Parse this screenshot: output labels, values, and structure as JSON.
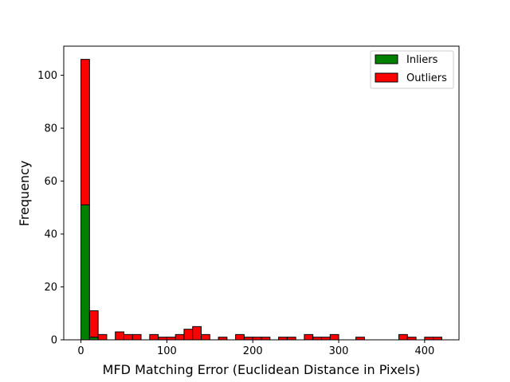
{
  "chart_data": {
    "type": "bar",
    "subtype": "stacked-histogram",
    "title": "",
    "xlabel": "MFD Matching Error (Euclidean Distance in Pixels)",
    "ylabel": "Frequency",
    "xlim": [
      -20,
      440
    ],
    "ylim": [
      0,
      111
    ],
    "xticks": [
      0,
      100,
      200,
      300,
      400
    ],
    "yticks": [
      0,
      20,
      40,
      60,
      80,
      100
    ],
    "bin_start": 0,
    "bin_width": 10,
    "legend_position": "top-right",
    "grid": false,
    "series": [
      {
        "name": "Inliers",
        "color": "#008000",
        "values": [
          51,
          1,
          0,
          0,
          0,
          0,
          0,
          0,
          0,
          0,
          0,
          0,
          0,
          0,
          0,
          0,
          0,
          0,
          0,
          0,
          0,
          0,
          0,
          0,
          0,
          0,
          0,
          0,
          0,
          0,
          0,
          0,
          0,
          0,
          0,
          0,
          0,
          0,
          0,
          0,
          0,
          0
        ]
      },
      {
        "name": "Outliers",
        "color": "#ff0000",
        "values": [
          55,
          10,
          2,
          0,
          3,
          2,
          2,
          0,
          2,
          1,
          1,
          2,
          4,
          5,
          2,
          0,
          1,
          0,
          2,
          1,
          1,
          1,
          0,
          1,
          1,
          0,
          2,
          1,
          1,
          2,
          0,
          0,
          1,
          0,
          0,
          0,
          0,
          2,
          1,
          0,
          1,
          1
        ]
      }
    ]
  }
}
